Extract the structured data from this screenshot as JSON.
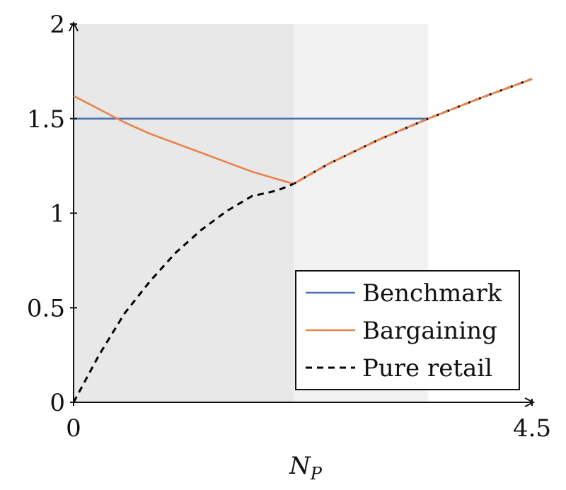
{
  "chart_data": {
    "type": "line",
    "xlabel": "N",
    "xlabel_subscript": "P",
    "ylabel": "",
    "xlim": [
      0,
      4.5
    ],
    "ylim": [
      0,
      2
    ],
    "x_ticks": [
      {
        "value": 0,
        "label": "0"
      },
      {
        "value": 4.5,
        "label": "4.5"
      }
    ],
    "y_ticks": [
      {
        "value": 0,
        "label": "0"
      },
      {
        "value": 0.5,
        "label": "0.5"
      },
      {
        "value": 1,
        "label": "1"
      },
      {
        "value": 1.5,
        "label": "1.5"
      },
      {
        "value": 2,
        "label": "2"
      }
    ],
    "grid": false,
    "shaded_regions": [
      {
        "x_from": 0,
        "x_to": 2.16,
        "color": "#e8e8e8"
      },
      {
        "x_from": 2.16,
        "x_to": 3.48,
        "color": "#f2f2f2"
      }
    ],
    "legend_position": "bottom-right",
    "series": [
      {
        "name": "Benchmark",
        "color": "#4a72b0",
        "dash": "solid",
        "x": [
          0,
          3.48
        ],
        "y": [
          1.5,
          1.5
        ]
      },
      {
        "name": "Bargaining",
        "color": "#e8834a",
        "dash": "solid",
        "x": [
          0,
          0.25,
          0.5,
          0.75,
          1.0,
          1.25,
          1.5,
          1.75,
          2.0,
          2.16,
          2.5,
          3.0,
          3.48,
          4.0,
          4.5
        ],
        "y": [
          1.62,
          1.55,
          1.48,
          1.42,
          1.37,
          1.32,
          1.27,
          1.22,
          1.18,
          1.155,
          1.26,
          1.39,
          1.5,
          1.61,
          1.71
        ]
      },
      {
        "name": "Pure retail",
        "color": "#000000",
        "dash": "dashed",
        "x": [
          0,
          0.25,
          0.5,
          0.75,
          1.0,
          1.25,
          1.5,
          1.75,
          2.0,
          2.16,
          2.5,
          3.0,
          3.48,
          4.0,
          4.5
        ],
        "y": [
          0.0,
          0.25,
          0.47,
          0.64,
          0.79,
          0.91,
          1.01,
          1.09,
          1.12,
          1.155,
          1.26,
          1.39,
          1.5,
          1.61,
          1.71
        ]
      }
    ]
  }
}
